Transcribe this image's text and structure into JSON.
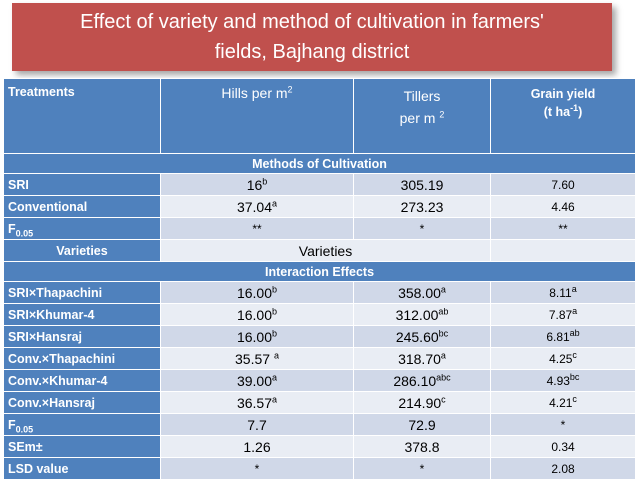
{
  "title": {
    "line1": "Effect of variety and method of cultivation in farmers'",
    "line2": "fields, Bajhang district"
  },
  "header": {
    "treatments": "Treatments",
    "hills": "Hills per m",
    "hills_sup": "2",
    "tillers_line1": "Tillers",
    "tillers_line2": "per m",
    "tillers_sup": "2",
    "grain_line1": "Grain yield",
    "grain_line2_pre": "(t ha",
    "grain_sup": "-1",
    "grain_line2_post": ")"
  },
  "section_methods": "Methods of Cultivation",
  "methods_rows": [
    {
      "label": "SRI",
      "hills": "16",
      "hills_sup": "b",
      "tillers": "305.19",
      "tillers_sup": "",
      "grain": "7.60",
      "grain_sup": ""
    },
    {
      "label": "Conventional",
      "hills": "37.04",
      "hills_sup": "a",
      "tillers": "273.23",
      "tillers_sup": "",
      "grain": "4.46",
      "grain_sup": ""
    }
  ],
  "methods_f": {
    "label": "F",
    "label_sub": "0.05",
    "hills": "**",
    "tillers": "*",
    "grain": "**"
  },
  "varieties_row": {
    "label": "Varieties",
    "value": "Varieties"
  },
  "section_interaction": "Interaction Effects",
  "interaction_rows": [
    {
      "label": "SRI×Thapachini",
      "hills": "16.00",
      "hills_sup": "b",
      "tillers": "358.00",
      "tillers_sup": "a",
      "grain": "8.11",
      "grain_sup": "a"
    },
    {
      "label": "SRI×Khumar-4",
      "hills": "16.00",
      "hills_sup": "b",
      "tillers": "312.00",
      "tillers_sup": "ab",
      "grain": "7.87",
      "grain_sup": "a"
    },
    {
      "label": "SRI×Hansraj",
      "hills": "16.00",
      "hills_sup": "b",
      "tillers": "245.60",
      "tillers_sup": "bc",
      "grain": "6.81",
      "grain_sup": "ab"
    },
    {
      "label": "Conv.×Thapachini",
      "hills": "35.57 ",
      "hills_sup": "a",
      "tillers": "318.70",
      "tillers_sup": "a",
      "grain": "4.25",
      "grain_sup": "c"
    },
    {
      "label": "Conv.×Khumar-4",
      "hills": "39.00",
      "hills_sup": "a",
      "tillers": "286.10",
      "tillers_sup": "abc",
      "grain": "4.93",
      "grain_sup": "bc"
    },
    {
      "label": "Conv.×Hansraj",
      "hills": "36.57",
      "hills_sup": "a",
      "tillers": "214.90",
      "tillers_sup": "c",
      "grain": "4.21",
      "grain_sup": "c"
    }
  ],
  "interaction_f": {
    "label": "F",
    "label_sub": "0.05",
    "hills": "7.7",
    "tillers": "72.9",
    "grain": "*"
  },
  "sem": {
    "label": "SEm±",
    "hills": "1.26",
    "tillers": "378.8",
    "grain": "0.34"
  },
  "lsd": {
    "label": "LSD value",
    "hills": "*",
    "tillers": "*",
    "grain": "2.08"
  }
}
